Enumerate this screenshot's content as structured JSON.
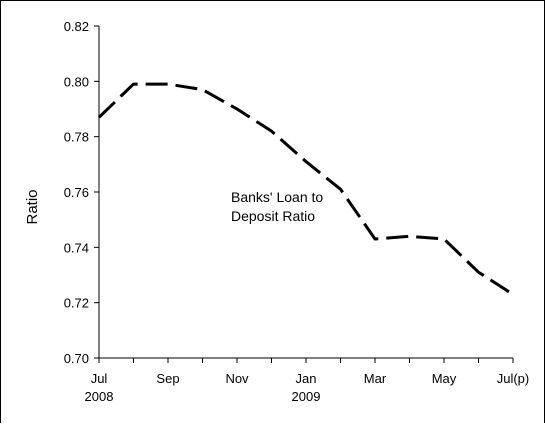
{
  "chart_data": {
    "type": "line",
    "title": "",
    "xlabel": "",
    "ylabel": "Ratio",
    "annotation": [
      "Banks' Loan to",
      "Deposit Ratio"
    ],
    "ylim": [
      0.7,
      0.82
    ],
    "y_ticks": [
      "0.70",
      "0.72",
      "0.74",
      "0.76",
      "0.78",
      "0.80",
      "0.82"
    ],
    "x_tick_labels": [
      {
        "index": 0,
        "line1": "Jul",
        "line2": "2008"
      },
      {
        "index": 2,
        "line1": "Sep",
        "line2": ""
      },
      {
        "index": 4,
        "line1": "Nov",
        "line2": ""
      },
      {
        "index": 6,
        "line1": "Jan",
        "line2": "2009"
      },
      {
        "index": 8,
        "line1": "Mar",
        "line2": ""
      },
      {
        "index": 10,
        "line1": "May",
        "line2": ""
      },
      {
        "index": 12,
        "line1": "Jul(p)",
        "line2": ""
      }
    ],
    "categories": [
      "Jul 2008",
      "Aug 2008",
      "Sep 2008",
      "Oct 2008",
      "Nov 2008",
      "Dec 2008",
      "Jan 2009",
      "Feb 2009",
      "Mar 2009",
      "Apr 2009",
      "May 2009",
      "Jun 2009",
      "Jul 2009 (p)"
    ],
    "series": [
      {
        "values": [
          0.787,
          0.799,
          0.799,
          0.797,
          0.79,
          0.782,
          0.771,
          0.761,
          0.743,
          0.744,
          0.743,
          0.731,
          0.723
        ]
      }
    ],
    "line_color": "#000000",
    "line_style": "dashed",
    "grid": false
  }
}
